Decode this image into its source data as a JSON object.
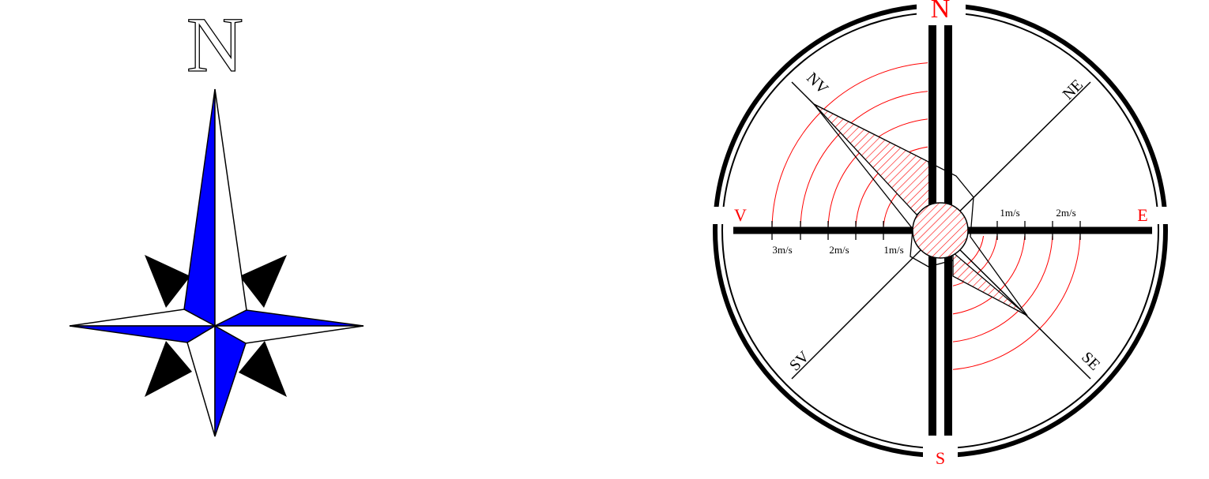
{
  "compass_star": {
    "north_label": "N",
    "colors": {
      "blue": "#0000ff",
      "black": "#000000",
      "white": "#ffffff"
    }
  },
  "wind_rose": {
    "cardinal_labels": {
      "north": "N",
      "south": "S",
      "east": "E",
      "west": "V"
    },
    "diagonal_labels": {
      "nw": "NV",
      "ne": "NE",
      "sw": "SV",
      "se": "SE"
    },
    "scale_left": [
      "3m/s",
      "2m/s",
      "1m/s"
    ],
    "scale_right": [
      "1m/s",
      "2m/s"
    ],
    "colors": {
      "cardinal_text": "#ff0000",
      "arcs": "#ff0000",
      "hatch": "#ff0000",
      "lines": "#000000"
    }
  }
}
